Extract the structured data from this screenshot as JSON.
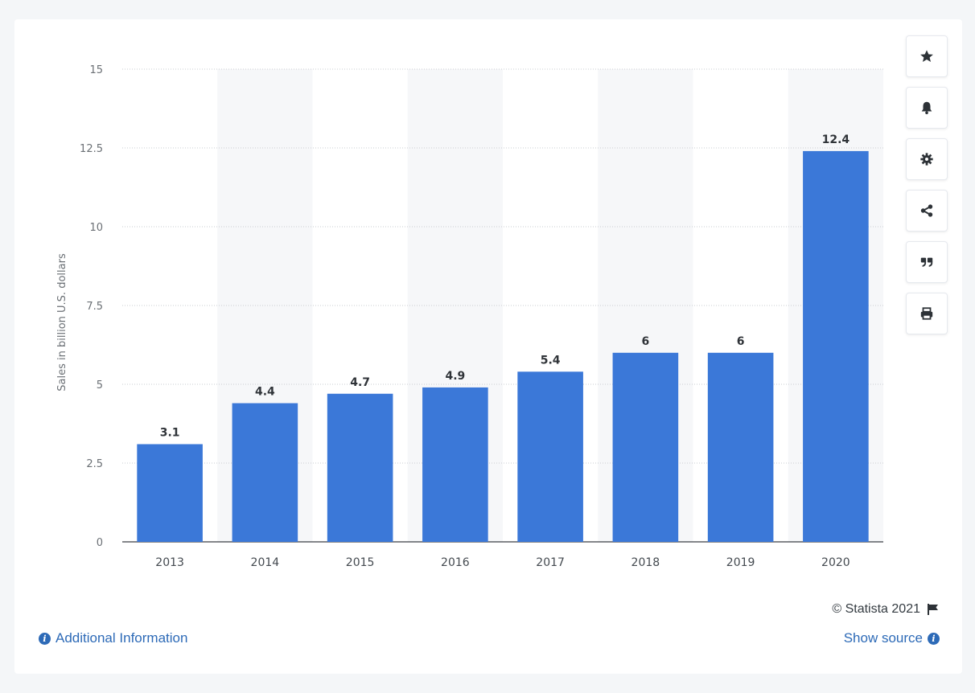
{
  "chart_data": {
    "type": "bar",
    "categories": [
      "2013",
      "2014",
      "2015",
      "2016",
      "2017",
      "2018",
      "2019",
      "2020"
    ],
    "values": [
      3.1,
      4.4,
      4.7,
      4.9,
      5.4,
      6,
      6,
      12.4
    ],
    "data_labels": [
      "3.1",
      "4.4",
      "4.7",
      "4.9",
      "5.4",
      "6",
      "6",
      "12.4"
    ],
    "title": "",
    "xlabel": "",
    "ylabel": "Sales in billion U.S. dollars",
    "ylim": [
      0,
      15
    ],
    "yticks": [
      0,
      2.5,
      5,
      7.5,
      10,
      12.5,
      15
    ],
    "ytick_labels": [
      "0",
      "2.5",
      "5",
      "7.5",
      "10",
      "12.5",
      "15"
    ],
    "grid": true,
    "alternating_column_shading": true,
    "bar_color": "#3b78d8"
  },
  "toolbar": {
    "buttons": [
      {
        "name": "favorite",
        "icon": "star-icon"
      },
      {
        "name": "notifications",
        "icon": "bell-icon"
      },
      {
        "name": "settings",
        "icon": "gear-icon"
      },
      {
        "name": "share",
        "icon": "share-icon"
      },
      {
        "name": "cite",
        "icon": "quote-icon"
      },
      {
        "name": "print",
        "icon": "print-icon"
      }
    ]
  },
  "footer": {
    "credit": "© Statista 2021",
    "credit_icon": "flag-icon",
    "additional_info": "Additional Information",
    "show_source": "Show source"
  }
}
